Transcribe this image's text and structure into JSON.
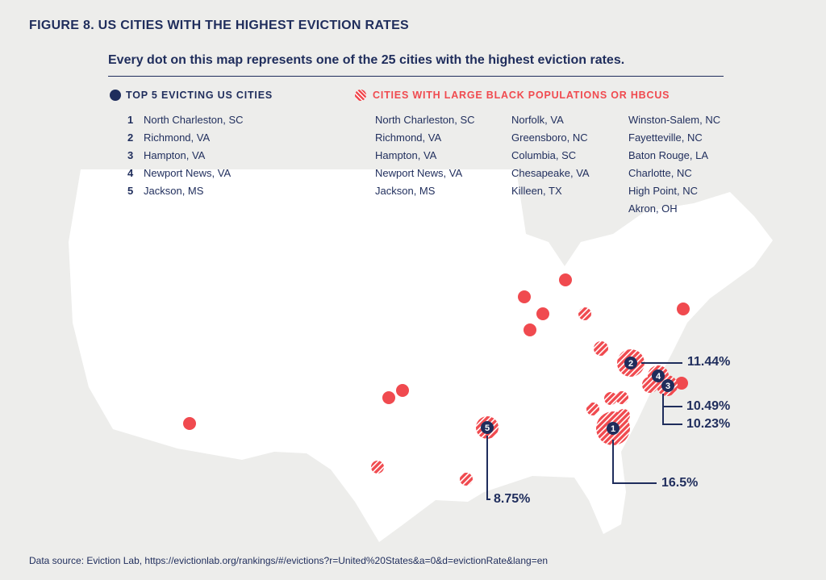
{
  "title": "FIGURE 8. US CITIES WITH THE HIGHEST EVICTION RATES",
  "subtitle": "Every dot on this map represents one of the 25 cities with the highest eviction rates.",
  "legend": {
    "top5_label": "TOP 5 EVICTING US CITIES",
    "black_label": "CITIES WITH LARGE BLACK POPULATIONS OR HBCUS",
    "top5": [
      {
        "n": "1",
        "city": "North Charleston, SC"
      },
      {
        "n": "2",
        "city": "Richmond, VA"
      },
      {
        "n": "3",
        "city": "Hampton, VA"
      },
      {
        "n": "4",
        "city": "Newport News, VA"
      },
      {
        "n": "5",
        "city": "Jackson, MS"
      }
    ],
    "black_col1": [
      "North Charleston, SC",
      "Richmond, VA",
      "Hampton, VA",
      "Newport News, VA",
      "Jackson, MS"
    ],
    "black_col2": [
      "Norfolk, VA",
      "Greensboro, NC",
      "Columbia, SC",
      "Chesapeake, VA",
      "Killeen, TX"
    ],
    "black_col3": [
      "Winston-Salem, NC",
      "Fayetteville, NC",
      "Baton Rouge, LA",
      "Charlotte, NC",
      "High Point, NC",
      "Akron, OH"
    ]
  },
  "markers": {
    "n1": "1",
    "n2": "2",
    "n3": "3",
    "n4": "4",
    "n5": "5"
  },
  "rates": {
    "r1": "16.5%",
    "r2": "11.44%",
    "r3": "10.23%",
    "r4": "10.49%",
    "r5": "8.75%"
  },
  "colors": {
    "navy": "#1f2d5c",
    "red": "#f04a4f",
    "bg": "#ededeb"
  },
  "source": "Data source: Eviction Lab, https://evictionlab.org/rankings/#/evictions?r=United%20States&a=0&d=evictionRate&lang=en"
}
